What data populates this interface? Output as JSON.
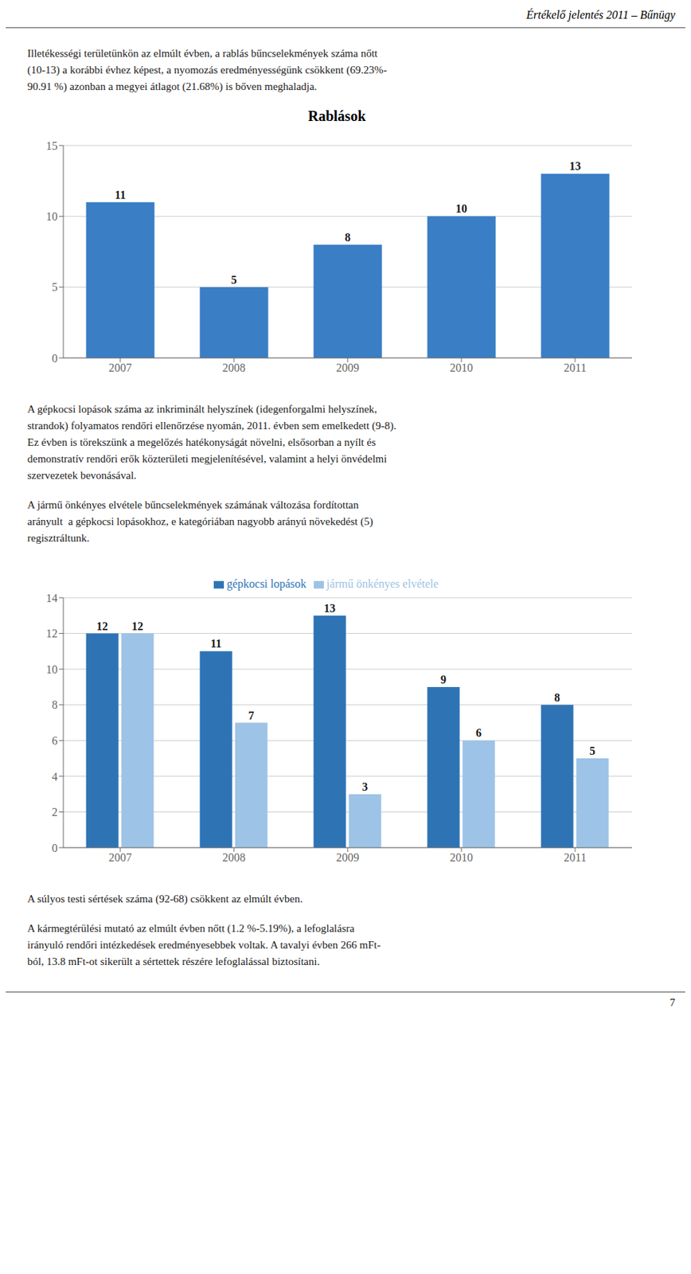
{
  "chart_data": [
    {
      "type": "bar",
      "title": "Rablások",
      "categories": [
        "2007",
        "2008",
        "2009",
        "2010",
        "2011"
      ],
      "values": [
        11,
        5,
        8,
        10,
        13
      ],
      "color": "#3A7EC6",
      "ylim": [
        0,
        15
      ],
      "yticks": [
        0,
        5,
        10,
        15
      ],
      "grid": true,
      "data_labels": true,
      "annotations": [
        [
          "Értékelő jelentés 2011 – Bűnügy"
        ],
        [
          "Illetékességi területünkön az elmúlt évben, a rablás bűncselekmények száma nőtt",
          "(10-13) a korábbi évhez képest, a nyomozás eredményességünk csökkent (69.23%-",
          "90.91 %) azonban a megyei átlagot (21.68%) is bőven meghaladja."
        ]
      ]
    },
    {
      "type": "bar",
      "categories": [
        "2007",
        "2008",
        "2009",
        "2010",
        "2011"
      ],
      "series": [
        {
          "name": "gépkocsi lopások",
          "color": "#2E74B5",
          "values": [
            12,
            11,
            13,
            9,
            8
          ]
        },
        {
          "name": "jármű önkényes elvétele",
          "color": "#9DC3E6",
          "values": [
            12,
            7,
            3,
            6,
            5
          ]
        }
      ],
      "ylim": [
        0,
        14
      ],
      "yticks": [
        0,
        2,
        4,
        6,
        8,
        10,
        12,
        14
      ],
      "grid": true,
      "legend": "top",
      "data_labels": true,
      "annotations": [
        [
          "A gépkocsi lopások száma az inkriminált helyszínek (idegenforgalmi helyszínek,",
          "strandok) folyamatos rendőri ellenőrzése nyomán, 2011. évben sem emelkedett (9-8).",
          "Ez évben is törekszünk a megelőzés hatékonyságát növelni, elsősorban a nyílt és",
          "demonstratív rendőri erők közterületi megjelenítésével, valamint a helyi önvédelmi",
          "szervezetek bevonásával."
        ],
        [
          "A jármű önkényes elvétele bűncselekmények számának változása fordítottan",
          "arányult  a gépkocsi lopásokhoz, e kategóriában nagyobb arányú növekedést (5)",
          "regisztráltunk."
        ],
        [
          "A súlyos testi sértések száma (92-68) csökkent az elmúlt évben."
        ],
        [
          "A kármegtérülési mutató az elmúlt évben nőtt (1.2 %-5.19%), a lefoglalásra",
          "irányuló rendőri intézkedések eredményesebbek voltak. A tavalyi évben 266 mFt-",
          "ból, 13.8 mFt-ot sikerült a sértettek részére lefoglalással biztosítani."
        ],
        [
          "7"
        ]
      ]
    }
  ]
}
